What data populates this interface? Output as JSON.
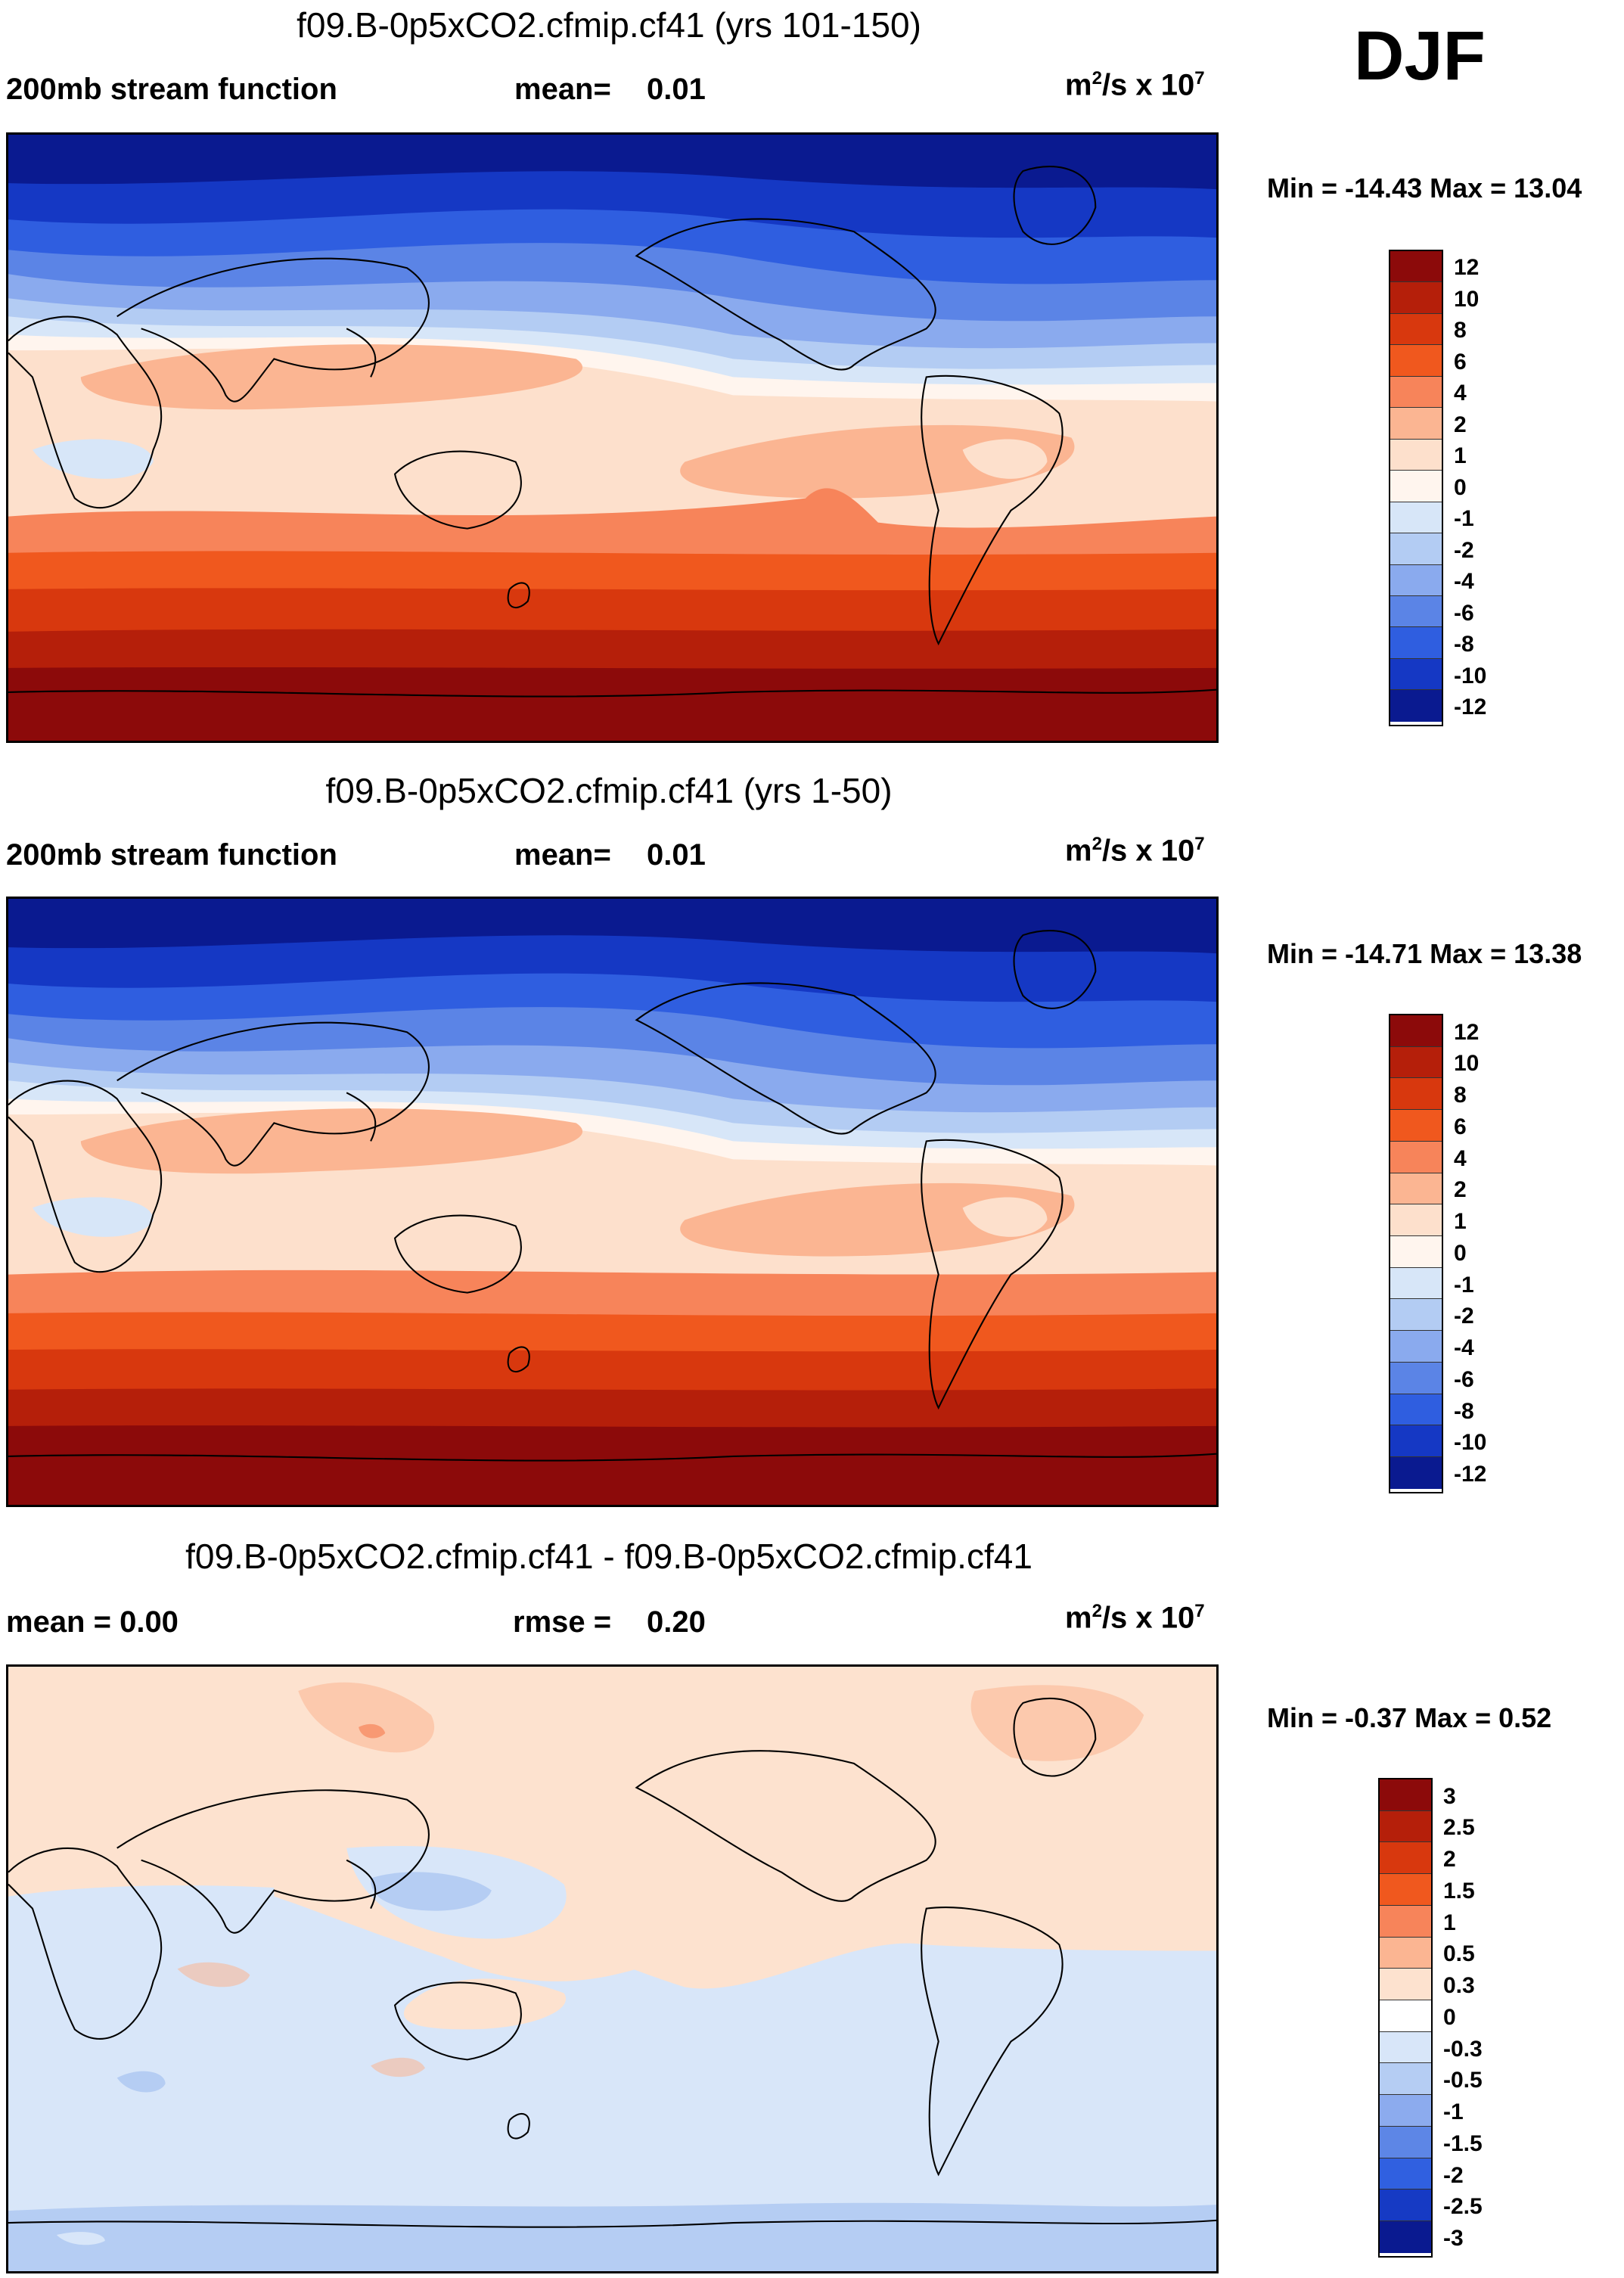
{
  "season": "DJF",
  "panels": [
    {
      "title": "f09.B-0p5xCO2.cfmip.cf41 (yrs 101-150)",
      "left_label": "200mb stream function",
      "mean_label": "mean=",
      "mean_value": "0.01",
      "units_base": "m",
      "units_exp": "2",
      "units_mid": "/s x 10",
      "units_pow": "7",
      "min_max": "Min = -14.43 Max =  13.04",
      "legend_ticks": [
        "12",
        "10",
        "8",
        "6",
        "4",
        "2",
        "1",
        "0",
        "-1",
        "-2",
        "-4",
        "-6",
        "-8",
        "-10",
        "-12"
      ]
    },
    {
      "title": "f09.B-0p5xCO2.cfmip.cf41 (yrs 1-50)",
      "left_label": "200mb stream function",
      "mean_label": "mean=",
      "mean_value": "0.01",
      "units_base": "m",
      "units_exp": "2",
      "units_mid": "/s x 10",
      "units_pow": "7",
      "min_max": "Min = -14.71 Max =  13.38",
      "legend_ticks": [
        "12",
        "10",
        "8",
        "6",
        "4",
        "2",
        "1",
        "0",
        "-1",
        "-2",
        "-4",
        "-6",
        "-8",
        "-10",
        "-12"
      ]
    },
    {
      "title": "f09.B-0p5xCO2.cfmip.cf41 - f09.B-0p5xCO2.cfmip.cf41",
      "left_label": "mean =   0.00",
      "mean_label": "rmse =",
      "mean_value": "0.20",
      "units_base": "m",
      "units_exp": "2",
      "units_mid": "/s x 10",
      "units_pow": "7",
      "min_max": "Min =  -0.37 Max =   0.52",
      "legend_ticks": [
        "3",
        "2.5",
        "2",
        "1.5",
        "1",
        "0.5",
        "0.3",
        "0",
        "-0.3",
        "-0.5",
        "-1",
        "-1.5",
        "-2",
        "-2.5",
        "-3"
      ]
    }
  ],
  "colors": {
    "abs_scale": [
      "#8c0a0a",
      "#b51f0a",
      "#d8380e",
      "#f0581e",
      "#f7845a",
      "#fbb592",
      "#fde0cc",
      "#fff5ee",
      "#d7e6f8",
      "#b3ccf3",
      "#8aaaee",
      "#5b84e6",
      "#2f5ee0",
      "#1538c4",
      "#0a1a90"
    ],
    "diff_scale": [
      "#8c0a0a",
      "#b51f0a",
      "#d8380e",
      "#f0581e",
      "#f7845a",
      "#fbb592",
      "#fde2cf",
      "#ffffff",
      "#d8e6f9",
      "#b5cdf3",
      "#8cabee",
      "#5d86e6",
      "#3060e0",
      "#163ac4",
      "#0a1a90"
    ]
  }
}
